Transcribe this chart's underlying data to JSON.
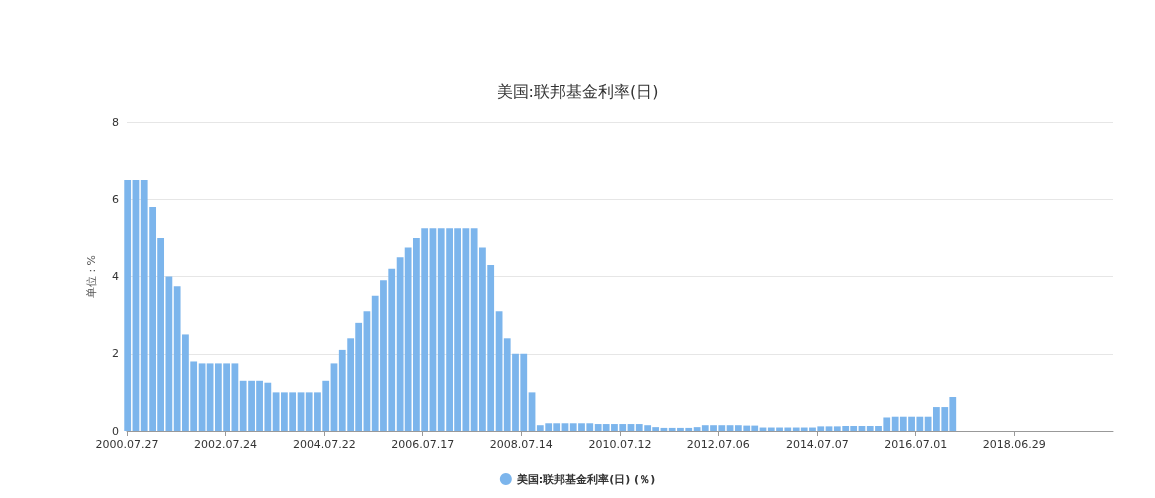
{
  "chart_data": {
    "type": "bar",
    "title": "美国:联邦基金利率(日)",
    "ylabel": "单位 : %",
    "x": [
      "2000-08-01",
      "2000-10-01",
      "2000-12-01",
      "2001-02-01",
      "2001-04-01",
      "2001-06-01",
      "2001-08-01",
      "2001-10-01",
      "2001-12-01",
      "2002-02-01",
      "2002-04-01",
      "2002-06-01",
      "2002-08-01",
      "2002-10-01",
      "2002-12-01",
      "2003-02-01",
      "2003-04-01",
      "2003-06-01",
      "2003-08-01",
      "2003-10-01",
      "2003-12-01",
      "2004-02-01",
      "2004-04-01",
      "2004-06-01",
      "2004-08-01",
      "2004-10-01",
      "2004-12-01",
      "2005-02-01",
      "2005-04-01",
      "2005-06-01",
      "2005-08-01",
      "2005-10-01",
      "2005-12-01",
      "2006-02-01",
      "2006-04-01",
      "2006-06-01",
      "2006-08-01",
      "2006-10-01",
      "2006-12-01",
      "2007-02-01",
      "2007-04-01",
      "2007-06-01",
      "2007-08-01",
      "2007-10-01",
      "2007-12-01",
      "2008-02-01",
      "2008-04-01",
      "2008-06-01",
      "2008-08-01",
      "2008-10-01",
      "2008-12-01",
      "2009-02-01",
      "2009-04-01",
      "2009-06-01",
      "2009-08-01",
      "2009-10-01",
      "2009-12-01",
      "2010-02-01",
      "2010-04-01",
      "2010-06-01",
      "2010-08-01",
      "2010-10-01",
      "2010-12-01",
      "2011-02-01",
      "2011-04-01",
      "2011-06-01",
      "2011-08-01",
      "2011-10-01",
      "2011-12-01",
      "2012-02-01",
      "2012-04-01",
      "2012-06-01",
      "2012-08-01",
      "2012-10-01",
      "2012-12-01",
      "2013-02-01",
      "2013-04-01",
      "2013-06-01",
      "2013-08-01",
      "2013-10-01",
      "2013-12-01",
      "2014-02-01",
      "2014-04-01",
      "2014-06-01",
      "2014-08-01",
      "2014-10-01",
      "2014-12-01",
      "2015-02-01",
      "2015-04-01",
      "2015-06-01",
      "2015-08-01",
      "2015-10-01",
      "2015-12-01",
      "2016-02-01",
      "2016-04-01",
      "2016-06-01",
      "2016-08-01",
      "2016-10-01",
      "2016-12-01",
      "2017-02-01",
      "2017-04-01"
    ],
    "series": [
      {
        "name": "美国:联邦基金利率(日) (％)",
        "color": "#7cb5ec",
        "values": [
          6.5,
          6.5,
          6.5,
          5.8,
          5.0,
          4.0,
          3.75,
          2.5,
          1.8,
          1.75,
          1.75,
          1.75,
          1.75,
          1.75,
          1.3,
          1.3,
          1.3,
          1.25,
          1.0,
          1.0,
          1.0,
          1.0,
          1.0,
          1.0,
          1.3,
          1.75,
          2.1,
          2.4,
          2.8,
          3.1,
          3.5,
          3.9,
          4.2,
          4.5,
          4.75,
          5.0,
          5.25,
          5.25,
          5.25,
          5.25,
          5.25,
          5.25,
          5.25,
          4.75,
          4.3,
          3.1,
          2.4,
          2.0,
          2.0,
          1.0,
          0.15,
          0.2,
          0.2,
          0.2,
          0.2,
          0.2,
          0.2,
          0.18,
          0.18,
          0.18,
          0.18,
          0.18,
          0.18,
          0.15,
          0.1,
          0.08,
          0.08,
          0.08,
          0.08,
          0.1,
          0.15,
          0.15,
          0.15,
          0.15,
          0.15,
          0.14,
          0.14,
          0.09,
          0.09,
          0.09,
          0.09,
          0.09,
          0.09,
          0.09,
          0.12,
          0.12,
          0.12,
          0.13,
          0.13,
          0.13,
          0.13,
          0.13,
          0.35,
          0.37,
          0.37,
          0.37,
          0.37,
          0.37,
          0.62,
          0.62,
          0.88
        ]
      }
    ],
    "xlim": [
      "2000-07-27",
      "2020-06-26"
    ],
    "xticks": [
      {
        "value": "2000-07-27",
        "label": "2000.07.27"
      },
      {
        "value": "2002-07-24",
        "label": "2002.07.24"
      },
      {
        "value": "2004-07-22",
        "label": "2004.07.22"
      },
      {
        "value": "2006-07-17",
        "label": "2006.07.17"
      },
      {
        "value": "2008-07-14",
        "label": "2008.07.14"
      },
      {
        "value": "2010-07-12",
        "label": "2010.07.12"
      },
      {
        "value": "2012-07-06",
        "label": "2012.07.06"
      },
      {
        "value": "2014-07-07",
        "label": "2014.07.07"
      },
      {
        "value": "2016-07-01",
        "label": "2016.07.01"
      },
      {
        "value": "2018-06-29",
        "label": "2018.06.29"
      }
    ],
    "ylim": [
      0,
      8
    ],
    "yticks": [
      0,
      2,
      4,
      6,
      8
    ],
    "grid": "y",
    "legend": "bottom"
  }
}
